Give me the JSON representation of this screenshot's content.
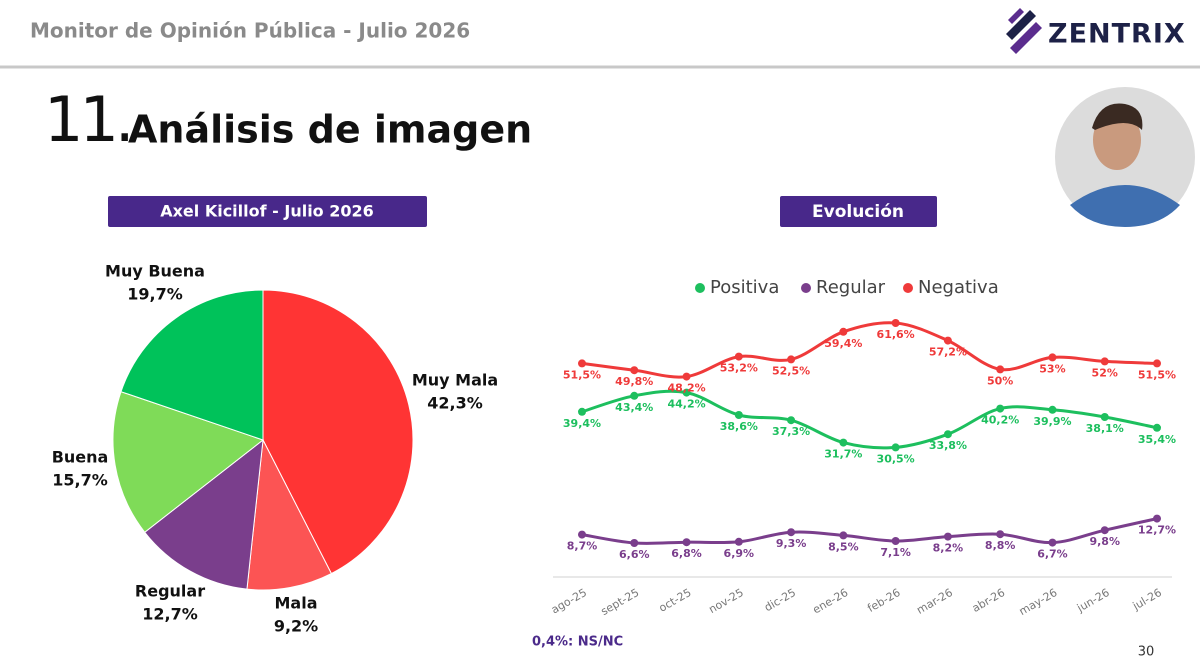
{
  "header": {
    "title": "Monitor de Opinión Pública - Julio 2026",
    "logo": "ZENTRIX"
  },
  "section": {
    "number": "11.",
    "title": "Análisis de imagen"
  },
  "chart_data": [
    {
      "type": "pie",
      "title": "Axel Kicillof - Julio 2026",
      "categories": [
        "Muy Mala",
        "Mala",
        "Regular",
        "Buena",
        "Muy Buena"
      ],
      "values": [
        42.3,
        9.2,
        12.7,
        15.7,
        19.7
      ],
      "value_labels": [
        "42,3%",
        "9,2%",
        "12,7%",
        "15,7%",
        "19,7%"
      ],
      "colors": [
        "#ff3434",
        "#fc5454",
        "#7a3e8c",
        "#7fdb58",
        "#00c25a"
      ]
    },
    {
      "type": "line",
      "title": "Evolución",
      "categories": [
        "ago-25",
        "sept-25",
        "oct-25",
        "nov-25",
        "dic-25",
        "ene-26",
        "feb-26",
        "mar-26",
        "abr-26",
        "may-26",
        "jun-26",
        "jul-26"
      ],
      "series": [
        {
          "name": "Positiva",
          "color": "#1dbf5e",
          "values": [
            39.4,
            43.4,
            44.2,
            38.6,
            37.3,
            31.7,
            30.5,
            33.8,
            40.2,
            39.9,
            38.1,
            35.4
          ],
          "value_labels": [
            "39,4%",
            "43,4%",
            "44,2%",
            "38,6%",
            "37,3%",
            "31,7%",
            "30,5%",
            "33,8%",
            "40,2%",
            "39,9%",
            "38,1%",
            "35,4%"
          ]
        },
        {
          "name": "Regular",
          "color": "#7a3e8c",
          "values": [
            8.7,
            6.6,
            6.8,
            6.9,
            9.3,
            8.5,
            7.1,
            8.2,
            8.8,
            6.7,
            9.8,
            12.7
          ],
          "value_labels": [
            "8,7%",
            "6,6%",
            "6,8%",
            "6,9%",
            "9,3%",
            "8,5%",
            "7,1%",
            "8,2%",
            "8,8%",
            "6,7%",
            "9,8%",
            "12,7%"
          ]
        },
        {
          "name": "Negativa",
          "color": "#ef3a3a",
          "values": [
            51.5,
            49.8,
            48.2,
            53.2,
            52.5,
            59.4,
            61.6,
            57.2,
            50,
            53,
            52,
            51.5
          ],
          "value_labels": [
            "51,5%",
            "49,8%",
            "48,2%",
            "53,2%",
            "52,5%",
            "59,4%",
            "61,6%",
            "57,2%",
            "50%",
            "53%",
            "52%",
            "51,5%"
          ]
        }
      ]
    }
  ],
  "footnote": "0,4%: NS/NC",
  "page_number": 30
}
